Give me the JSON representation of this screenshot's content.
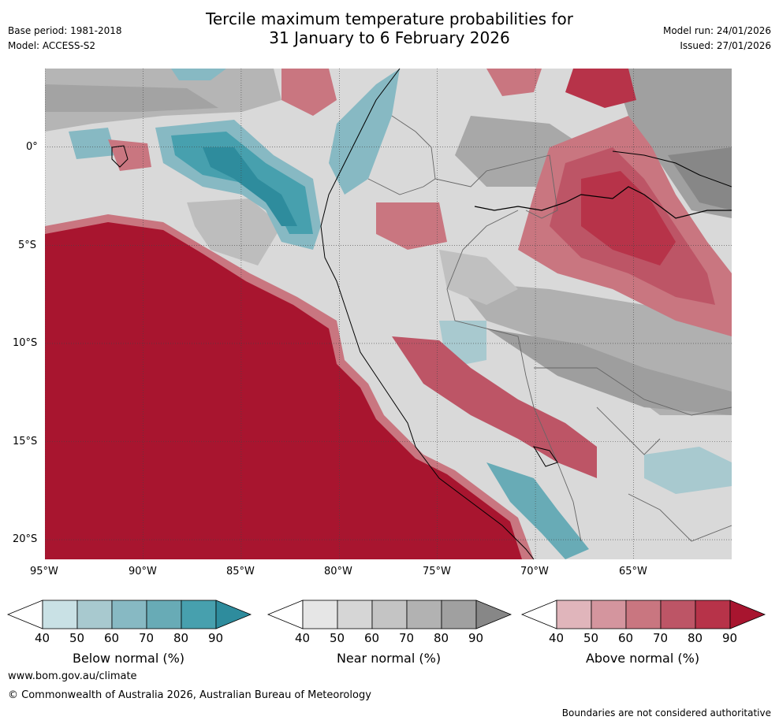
{
  "header": {
    "title_line1": "Tercile maximum temperature probabilities for",
    "title_line2": "31 January to 6 February 2026",
    "base_period": "Base period: 1981-2018",
    "model": "Model: ACCESS-S2",
    "model_run": "Model run: 24/01/2026",
    "issued": "Issued: 27/01/2026"
  },
  "map": {
    "lat_labels": [
      "0°",
      "5°S",
      "10°S",
      "15°S",
      "20°S"
    ],
    "lon_labels": [
      "95°W",
      "90°W",
      "85°W",
      "80°W",
      "75°W",
      "70°W",
      "65°W"
    ],
    "extent": {
      "lon_min": -95,
      "lon_max": -60,
      "lat_min": -21,
      "lat_max": 4
    }
  },
  "colorbars": [
    {
      "label": "Below normal (%)",
      "ticks": [
        "40",
        "50",
        "60",
        "70",
        "80",
        "90"
      ],
      "colors": [
        "#c9e1e5",
        "#a8c9cf",
        "#87b9c3",
        "#68abb6",
        "#47a0ae",
        "#2e8c9d"
      ]
    },
    {
      "label": "Near normal (%)",
      "ticks": [
        "40",
        "50",
        "60",
        "70",
        "80",
        "90"
      ],
      "colors": [
        "#e6e6e6",
        "#d6d6d6",
        "#c4c4c4",
        "#b2b2b2",
        "#a0a0a0",
        "#878787"
      ]
    },
    {
      "label": "Above normal (%)",
      "ticks": [
        "40",
        "50",
        "60",
        "70",
        "80",
        "90"
      ],
      "colors": [
        "#e0b5bb",
        "#d4959e",
        "#c97680",
        "#bd5566",
        "#b73349",
        "#a8152f"
      ]
    }
  ],
  "footer": {
    "website": "www.bom.gov.au/climate",
    "copyright": "© Commonwealth of Australia 2026, Australian Bureau of Meteorology",
    "disclaimer": "Boundaries are not considered authoritative"
  }
}
